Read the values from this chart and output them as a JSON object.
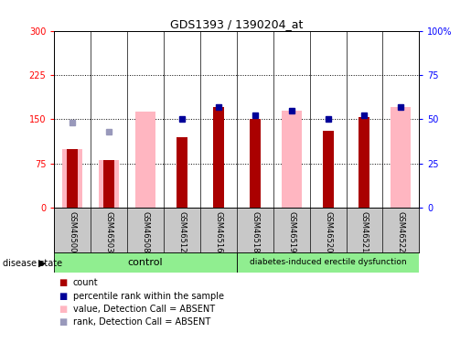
{
  "title": "GDS1393 / 1390204_at",
  "samples": [
    "GSM46500",
    "GSM46503",
    "GSM46508",
    "GSM46512",
    "GSM46516",
    "GSM46518",
    "GSM46519",
    "GSM46520",
    "GSM46521",
    "GSM46522"
  ],
  "pink_bar_values": [
    100,
    80,
    163,
    null,
    null,
    null,
    165,
    null,
    null,
    170
  ],
  "red_bar_values": [
    100,
    80,
    null,
    120,
    170,
    150,
    null,
    130,
    153,
    null
  ],
  "blue_sq_values": [
    null,
    null,
    null,
    50,
    57,
    52,
    55,
    50,
    52,
    57
  ],
  "blue_absent_values": [
    48,
    43,
    null,
    null,
    null,
    null,
    null,
    null,
    null,
    null
  ],
  "ylim_left": [
    0,
    300
  ],
  "ylim_right": [
    0,
    100
  ],
  "yticks_left": [
    0,
    75,
    150,
    225,
    300
  ],
  "ytick_labels_left": [
    "0",
    "75",
    "150",
    "225",
    "300"
  ],
  "yticks_right": [
    0,
    25,
    50,
    75,
    100
  ],
  "ytick_labels_right": [
    "0",
    "25",
    "50",
    "75",
    "100%"
  ],
  "bar_color_red": "#AA0000",
  "bar_color_pink": "#FFB6C1",
  "dot_color_blue": "#000099",
  "dot_color_blue_absent": "#9999BB",
  "label_bg": "#C8C8C8",
  "group_bg": "#90EE90",
  "control_label": "control",
  "disease_label": "diabetes-induced erectile dysfunction",
  "n_control": 5,
  "legend": [
    {
      "label": "count",
      "color": "#AA0000"
    },
    {
      "label": "percentile rank within the sample",
      "color": "#000099"
    },
    {
      "label": "value, Detection Call = ABSENT",
      "color": "#FFB6C1"
    },
    {
      "label": "rank, Detection Call = ABSENT",
      "color": "#9999BB"
    }
  ]
}
